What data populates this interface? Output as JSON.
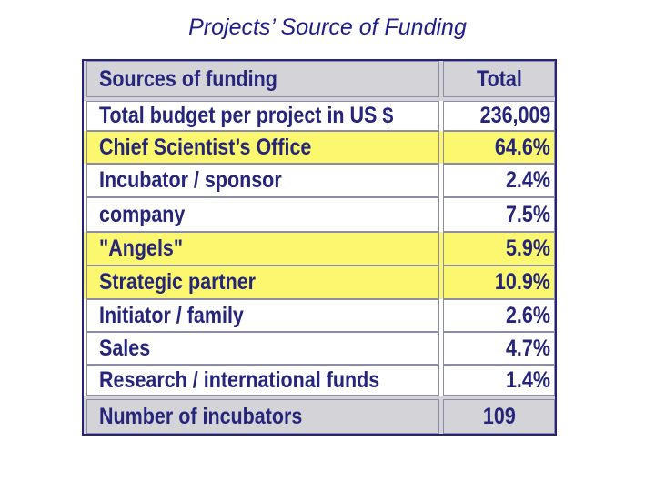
{
  "title": "Projects’ Source of Funding",
  "colors": {
    "header_bg": "#d3d3d8",
    "highlight_bg": "#fbf86f",
    "text": "#25257c",
    "title_text": "#1f1f8a",
    "border": "#23237c"
  },
  "chart_data": {
    "type": "table",
    "title": "Projects’ Source of Funding",
    "columns": [
      "Sources of funding",
      "Total"
    ],
    "rows": [
      {
        "label": "Total budget per project in US $",
        "value": "236,009",
        "style": "white"
      },
      {
        "label": "Chief Scientist’s Office",
        "value": "64.6%",
        "style": "yellow"
      },
      {
        "label": "Incubator / sponsor",
        "value": "2.4%",
        "style": "white"
      },
      {
        "label": "company",
        "value": "7.5%",
        "style": "white"
      },
      {
        "label": "\"Angels\"",
        "value": "5.9%",
        "style": "yellow"
      },
      {
        "label": "Strategic partner",
        "value": "10.9%",
        "style": "yellow"
      },
      {
        "label": "Initiator / family",
        "value": "2.6%",
        "style": "white"
      },
      {
        "label": "Sales",
        "value": "4.7%",
        "style": "white"
      },
      {
        "label": "Research / international funds",
        "value": "1.4%",
        "style": "white"
      }
    ],
    "footer": {
      "label": "Number of incubators",
      "value": "109"
    }
  }
}
